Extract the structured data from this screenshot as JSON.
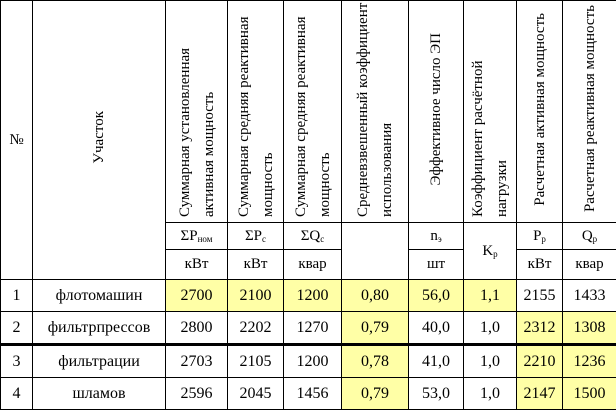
{
  "header": {
    "num": "№",
    "section": "Участок",
    "columns": [
      "Суммарная установленная активная мощность",
      "Суммарная средняя реактивная мощность",
      "Суммарная средняя реактивная мощность",
      "Средневзвешенный коэффициент использования",
      "Эффективное число ЭП",
      "Коэффициент расчётной нагрузки",
      "Расчетная активная мощность",
      "Расчетная реактивная мощность"
    ]
  },
  "symbols": {
    "p_nom": {
      "main": "ΣP",
      "sub": "ном"
    },
    "p_c": {
      "main": "ΣP",
      "sub": "с"
    },
    "q_c": {
      "main": "ΣQ",
      "sub": "с"
    },
    "n_e": {
      "main": "n",
      "sub": "э"
    },
    "k_p": {
      "main": "K",
      "sub": "р"
    },
    "p_p": {
      "main": "P",
      "sub": "р"
    },
    "q_p": {
      "main": "Q",
      "sub": "р"
    }
  },
  "units": {
    "p_nom": "кВт",
    "p_c": "кВт",
    "q_c": "квар",
    "n_e": "шт",
    "p_p": "кВт",
    "q_p": "квар"
  },
  "highlight_color": "#ffffa6",
  "rows": [
    {
      "num": "1",
      "name": "флотомашин",
      "cells": [
        "2700",
        "2100",
        "1200",
        "0,80",
        "56,0",
        "1,1",
        "2155",
        "1433"
      ],
      "highlighted": [
        true,
        true,
        true,
        true,
        true,
        true,
        false,
        false
      ]
    },
    {
      "num": "2",
      "name": "фильтрпрессов",
      "cells": [
        "2800",
        "2202",
        "1270",
        "0,79",
        "40,0",
        "1,0",
        "2312",
        "1308"
      ],
      "highlighted": [
        false,
        false,
        false,
        true,
        false,
        false,
        true,
        true
      ]
    },
    {
      "num": "3",
      "name": "фильтрации",
      "cells": [
        "2703",
        "2105",
        "1200",
        "0,78",
        "41,0",
        "1,0",
        "2210",
        "1236"
      ],
      "highlighted": [
        false,
        false,
        false,
        true,
        false,
        false,
        true,
        true
      ]
    },
    {
      "num": "4",
      "name": "шламов",
      "cells": [
        "2596",
        "2045",
        "1456",
        "0,79",
        "53,0",
        "1,0",
        "2147",
        "1500"
      ],
      "highlighted": [
        false,
        false,
        false,
        true,
        false,
        false,
        true,
        true
      ]
    }
  ]
}
